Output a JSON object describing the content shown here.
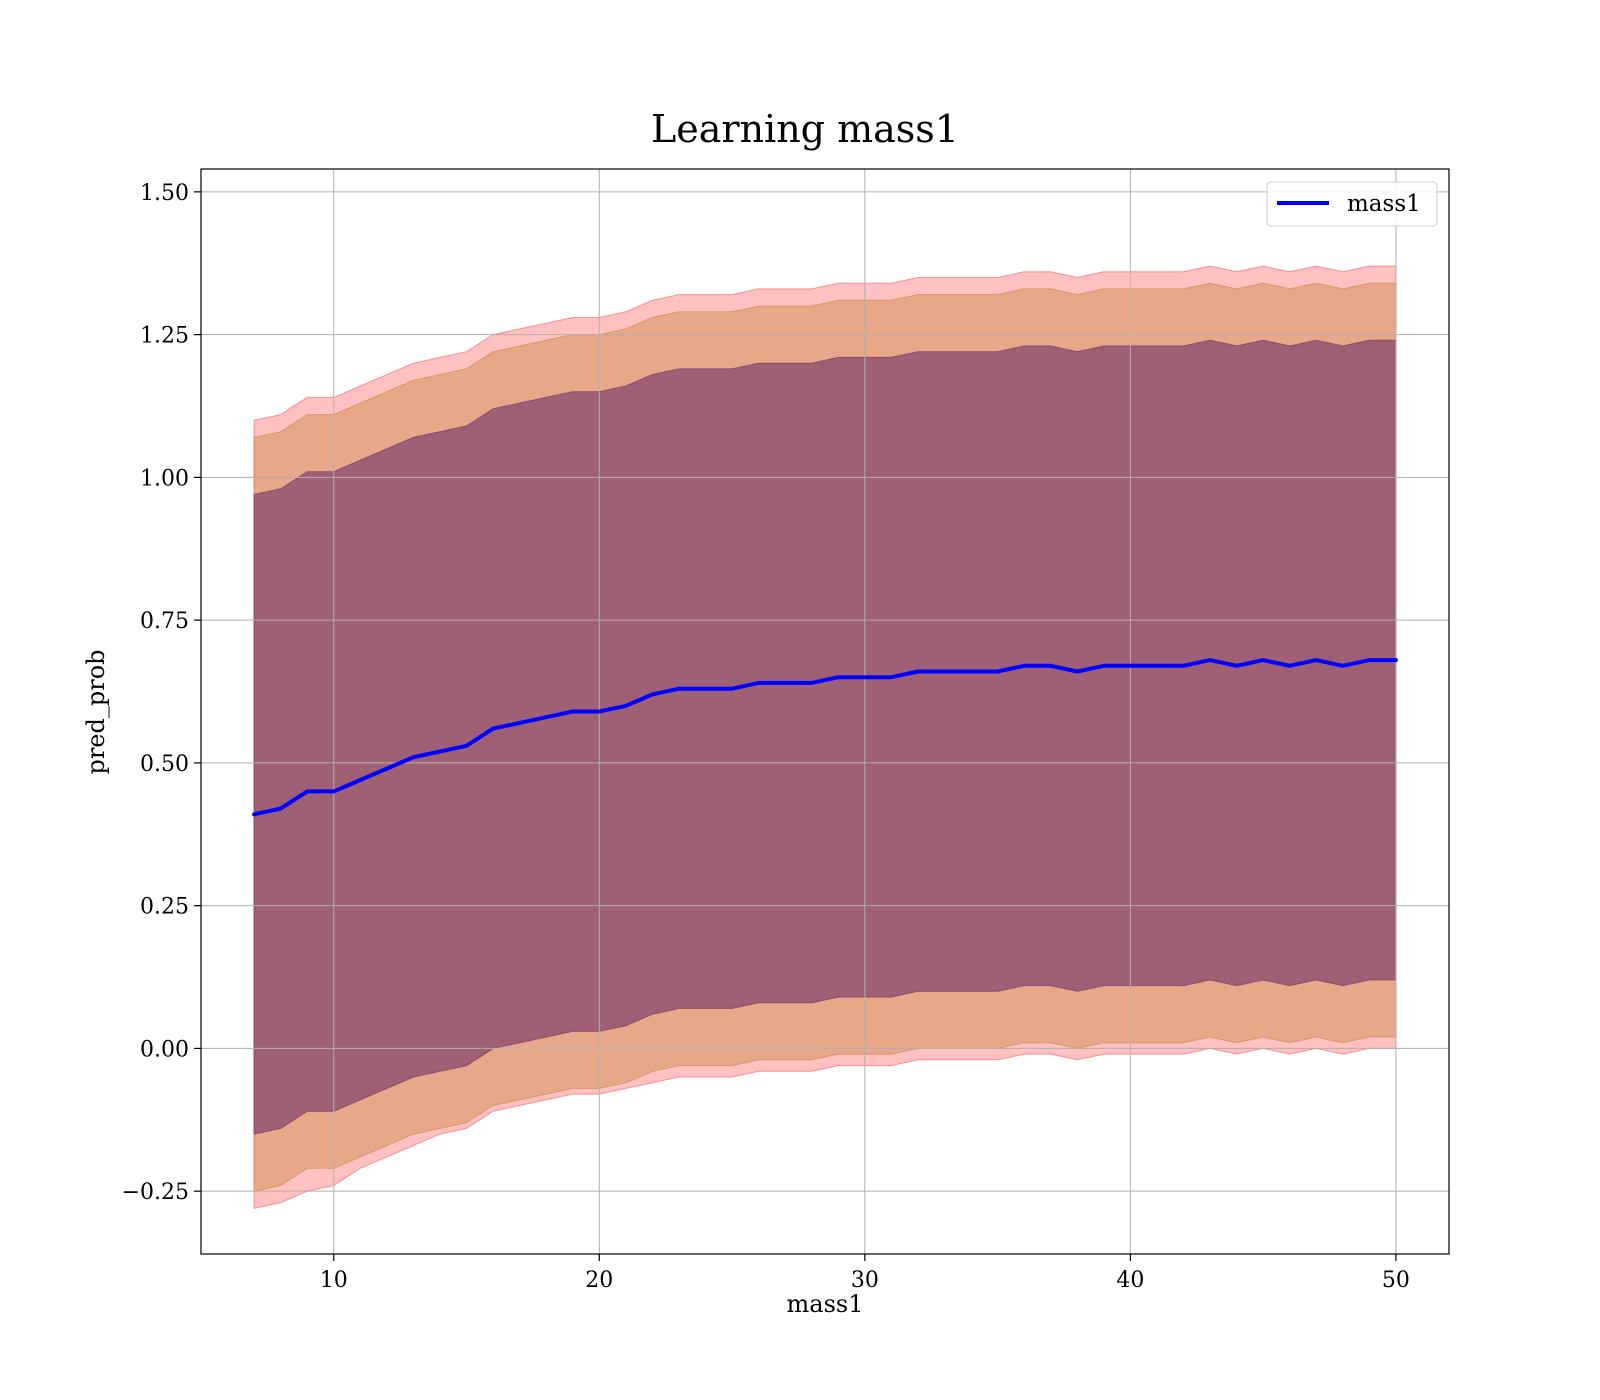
{
  "chart_data": {
    "type": "line",
    "title": "Learning mass1",
    "xlabel": "mass1",
    "ylabel": "pred_prob",
    "xlim": [
      5,
      52
    ],
    "ylim": [
      -0.36,
      1.54
    ],
    "grid": true,
    "legend": {
      "placement": "top-right",
      "entries": [
        "mass1"
      ]
    },
    "xticks": [
      10,
      20,
      30,
      40,
      50
    ],
    "yticks": [
      -0.25,
      0.0,
      0.25,
      0.5,
      0.75,
      1.0,
      1.25,
      1.5
    ],
    "xtick_labels": [
      "10",
      "20",
      "30",
      "40",
      "50"
    ],
    "ytick_labels": [
      "−0.25",
      "0.00",
      "0.25",
      "0.50",
      "0.75",
      "1.00",
      "1.25",
      "1.50"
    ],
    "series": [
      {
        "name": "mass1",
        "color": "#0000ff",
        "x": [
          7,
          8,
          9,
          10,
          11,
          12,
          13,
          14,
          15,
          16,
          17,
          18,
          19,
          20,
          21,
          22,
          23,
          24,
          25,
          26,
          27,
          28,
          29,
          30,
          31,
          32,
          33,
          34,
          35,
          36,
          37,
          38,
          39,
          40,
          41,
          42,
          43,
          44,
          45,
          46,
          47,
          48,
          49,
          50
        ],
        "y": [
          0.41,
          0.42,
          0.45,
          0.45,
          0.47,
          0.49,
          0.51,
          0.52,
          0.53,
          0.56,
          0.57,
          0.58,
          0.59,
          0.59,
          0.6,
          0.62,
          0.63,
          0.63,
          0.63,
          0.64,
          0.64,
          0.64,
          0.65,
          0.65,
          0.65,
          0.66,
          0.66,
          0.66,
          0.66,
          0.67,
          0.67,
          0.66,
          0.67,
          0.67,
          0.67,
          0.67,
          0.68,
          0.67,
          0.68,
          0.67,
          0.68,
          0.67,
          0.68,
          0.68
        ]
      }
    ],
    "bands": [
      {
        "name": "outer band",
        "color": "#ff4d4d",
        "opacity": 0.35,
        "x": [
          7,
          8,
          9,
          10,
          11,
          12,
          13,
          14,
          15,
          16,
          17,
          18,
          19,
          20,
          21,
          22,
          23,
          24,
          25,
          26,
          27,
          28,
          29,
          30,
          31,
          32,
          33,
          34,
          35,
          36,
          37,
          38,
          39,
          40,
          41,
          42,
          43,
          44,
          45,
          46,
          47,
          48,
          49,
          50
        ],
        "lower": [
          -0.28,
          -0.27,
          -0.25,
          -0.24,
          -0.21,
          -0.19,
          -0.17,
          -0.15,
          -0.14,
          -0.11,
          -0.1,
          -0.09,
          -0.08,
          -0.08,
          -0.07,
          -0.06,
          -0.05,
          -0.05,
          -0.05,
          -0.04,
          -0.04,
          -0.04,
          -0.03,
          -0.03,
          -0.03,
          -0.02,
          -0.02,
          -0.02,
          -0.02,
          -0.01,
          -0.01,
          -0.02,
          -0.01,
          -0.01,
          -0.01,
          -0.01,
          0.0,
          -0.01,
          0.0,
          -0.01,
          0.0,
          -0.01,
          0.0,
          0.0
        ],
        "upper": [
          1.1,
          1.11,
          1.14,
          1.14,
          1.16,
          1.18,
          1.2,
          1.21,
          1.22,
          1.25,
          1.26,
          1.27,
          1.28,
          1.28,
          1.29,
          1.31,
          1.32,
          1.32,
          1.32,
          1.33,
          1.33,
          1.33,
          1.34,
          1.34,
          1.34,
          1.35,
          1.35,
          1.35,
          1.35,
          1.36,
          1.36,
          1.35,
          1.36,
          1.36,
          1.36,
          1.36,
          1.37,
          1.36,
          1.37,
          1.36,
          1.37,
          1.36,
          1.37,
          1.37
        ]
      },
      {
        "name": "middle band",
        "color": "#cc8844",
        "opacity": 0.45,
        "x": [
          7,
          8,
          9,
          10,
          11,
          12,
          13,
          14,
          15,
          16,
          17,
          18,
          19,
          20,
          21,
          22,
          23,
          24,
          25,
          26,
          27,
          28,
          29,
          30,
          31,
          32,
          33,
          34,
          35,
          36,
          37,
          38,
          39,
          40,
          41,
          42,
          43,
          44,
          45,
          46,
          47,
          48,
          49,
          50
        ],
        "lower": [
          -0.25,
          -0.24,
          -0.21,
          -0.21,
          -0.19,
          -0.17,
          -0.15,
          -0.14,
          -0.13,
          -0.1,
          -0.09,
          -0.08,
          -0.07,
          -0.07,
          -0.06,
          -0.04,
          -0.03,
          -0.03,
          -0.03,
          -0.02,
          -0.02,
          -0.02,
          -0.01,
          -0.01,
          -0.01,
          0.0,
          0.0,
          0.0,
          0.0,
          0.01,
          0.01,
          0.0,
          0.01,
          0.01,
          0.01,
          0.01,
          0.02,
          0.01,
          0.02,
          0.01,
          0.02,
          0.01,
          0.02,
          0.02
        ],
        "upper": [
          1.07,
          1.08,
          1.11,
          1.11,
          1.13,
          1.15,
          1.17,
          1.18,
          1.19,
          1.22,
          1.23,
          1.24,
          1.25,
          1.25,
          1.26,
          1.28,
          1.29,
          1.29,
          1.29,
          1.3,
          1.3,
          1.3,
          1.31,
          1.31,
          1.31,
          1.32,
          1.32,
          1.32,
          1.32,
          1.33,
          1.33,
          1.32,
          1.33,
          1.33,
          1.33,
          1.33,
          1.34,
          1.33,
          1.34,
          1.33,
          1.34,
          1.33,
          1.34,
          1.34
        ]
      },
      {
        "name": "inner band",
        "color": "#8b4a6e",
        "opacity": 0.78,
        "x": [
          7,
          8,
          9,
          10,
          11,
          12,
          13,
          14,
          15,
          16,
          17,
          18,
          19,
          20,
          21,
          22,
          23,
          24,
          25,
          26,
          27,
          28,
          29,
          30,
          31,
          32,
          33,
          34,
          35,
          36,
          37,
          38,
          39,
          40,
          41,
          42,
          43,
          44,
          45,
          46,
          47,
          48,
          49,
          50
        ],
        "lower": [
          -0.15,
          -0.14,
          -0.11,
          -0.11,
          -0.09,
          -0.07,
          -0.05,
          -0.04,
          -0.03,
          0.0,
          0.01,
          0.02,
          0.03,
          0.03,
          0.04,
          0.06,
          0.07,
          0.07,
          0.07,
          0.08,
          0.08,
          0.08,
          0.09,
          0.09,
          0.09,
          0.1,
          0.1,
          0.1,
          0.1,
          0.11,
          0.11,
          0.1,
          0.11,
          0.11,
          0.11,
          0.11,
          0.12,
          0.11,
          0.12,
          0.11,
          0.12,
          0.11,
          0.12,
          0.12
        ],
        "upper": [
          0.97,
          0.98,
          1.01,
          1.01,
          1.03,
          1.05,
          1.07,
          1.08,
          1.09,
          1.12,
          1.13,
          1.14,
          1.15,
          1.15,
          1.16,
          1.18,
          1.19,
          1.19,
          1.19,
          1.2,
          1.2,
          1.2,
          1.21,
          1.21,
          1.21,
          1.22,
          1.22,
          1.22,
          1.22,
          1.23,
          1.23,
          1.22,
          1.23,
          1.23,
          1.23,
          1.23,
          1.24,
          1.23,
          1.24,
          1.23,
          1.24,
          1.23,
          1.24,
          1.24
        ]
      }
    ]
  }
}
